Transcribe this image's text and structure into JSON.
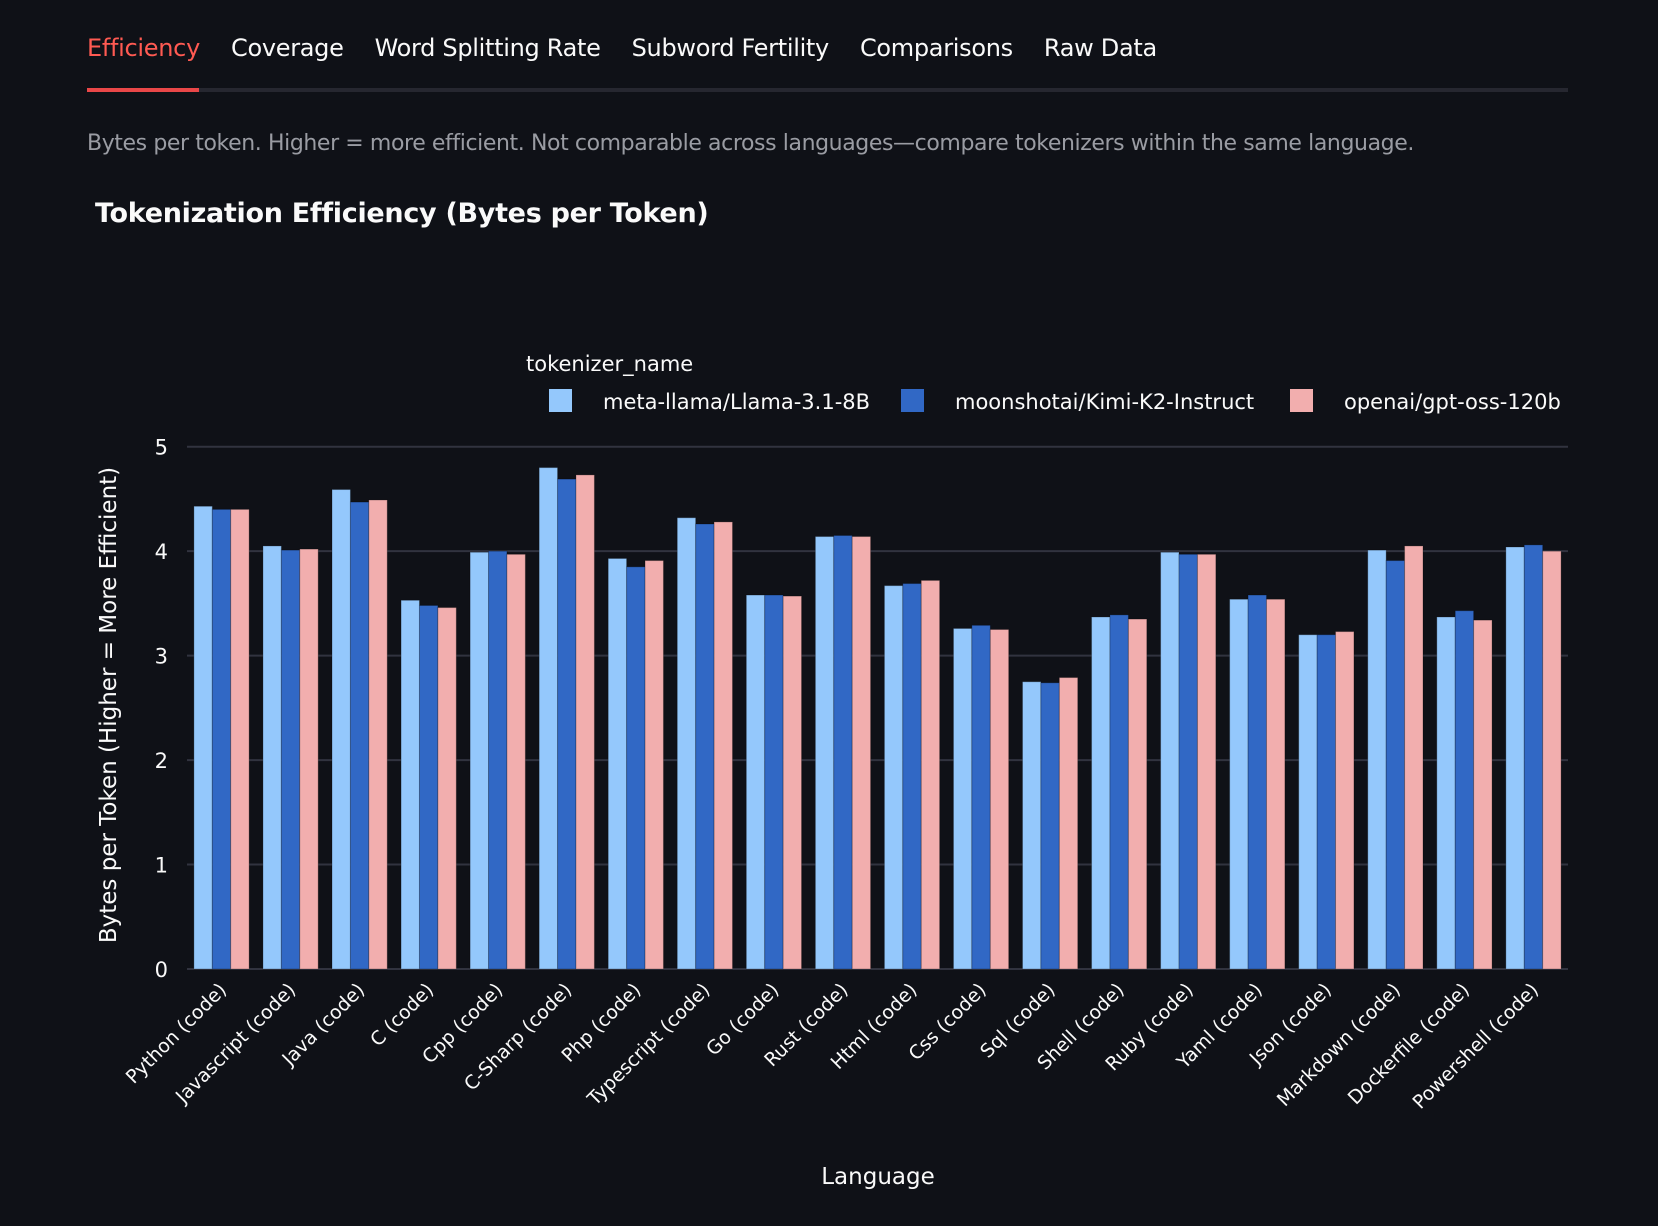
{
  "tabs": [
    {
      "label": "Efficiency",
      "active": true
    },
    {
      "label": "Coverage",
      "active": false
    },
    {
      "label": "Word Splitting Rate",
      "active": false
    },
    {
      "label": "Subword Fertility",
      "active": false
    },
    {
      "label": "Comparisons",
      "active": false
    },
    {
      "label": "Raw Data",
      "active": false
    }
  ],
  "caption": "Bytes per token. Higher = more efficient. Not comparable across languages—compare tokenizers within the same language.",
  "colors": {
    "accent": "#ff4b4b",
    "background": "#0f1117",
    "gridline": "#31333f"
  },
  "chart_data": {
    "type": "bar",
    "title": "Tokenization Efficiency (Bytes per Token)",
    "xlabel": "Language",
    "ylabel": "Bytes per Token (Higher = More Efficient)",
    "ylim": [
      0,
      5
    ],
    "yticks": [
      0,
      1,
      2,
      3,
      4,
      5
    ],
    "grid": true,
    "legend_title": "tokenizer_name",
    "legend_position": "top",
    "categories": [
      "Python (code)",
      "Javascript (code)",
      "Java (code)",
      "C (code)",
      "Cpp (code)",
      "C-Sharp (code)",
      "Php (code)",
      "Typescript (code)",
      "Go (code)",
      "Rust (code)",
      "Html (code)",
      "Css (code)",
      "Sql (code)",
      "Shell (code)",
      "Ruby (code)",
      "Yaml (code)",
      "Json (code)",
      "Markdown (code)",
      "Dockerfile (code)",
      "Powershell (code)"
    ],
    "series": [
      {
        "name": "meta-llama/Llama-3.1-8B",
        "color": "#94c8fc",
        "values": [
          4.43,
          4.05,
          4.59,
          3.53,
          3.99,
          4.8,
          3.93,
          4.32,
          3.58,
          4.14,
          3.67,
          3.26,
          2.75,
          3.37,
          3.99,
          3.54,
          3.2,
          4.01,
          3.37,
          4.04
        ]
      },
      {
        "name": "moonshotai/Kimi-K2-Instruct",
        "color": "#3168c5",
        "values": [
          4.4,
          4.01,
          4.47,
          3.48,
          4.0,
          4.69,
          3.85,
          4.26,
          3.58,
          4.15,
          3.69,
          3.29,
          2.74,
          3.39,
          3.97,
          3.58,
          3.2,
          3.91,
          3.43,
          4.06
        ]
      },
      {
        "name": "openai/gpt-oss-120b",
        "color": "#f2aeae",
        "values": [
          4.4,
          4.02,
          4.49,
          3.46,
          3.97,
          4.73,
          3.91,
          4.28,
          3.57,
          4.14,
          3.72,
          3.25,
          2.79,
          3.35,
          3.97,
          3.54,
          3.23,
          4.05,
          3.34,
          4.0
        ]
      }
    ]
  }
}
